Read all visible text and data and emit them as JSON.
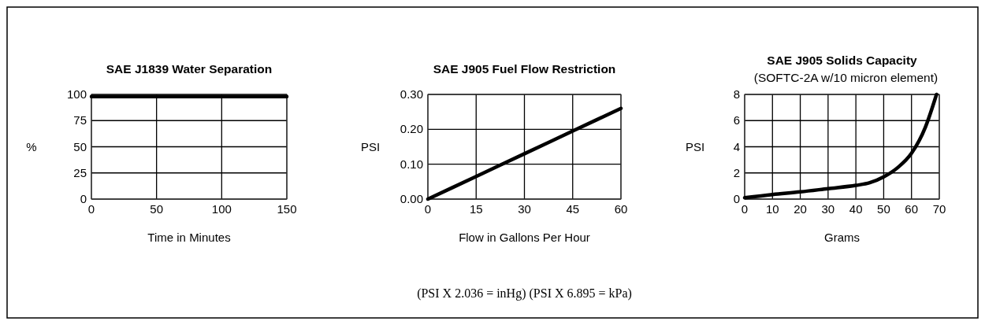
{
  "chart_data": [
    {
      "type": "line",
      "title": "SAE J1839 Water Separation",
      "xlabel": "Time in Minutes",
      "ylabel": "%",
      "x": [
        0,
        150
      ],
      "series": [
        {
          "color": "#000000",
          "values": [
            98,
            98
          ]
        }
      ],
      "xlim": [
        0,
        150
      ],
      "xticks": [
        0,
        50,
        100,
        150
      ],
      "ylim": [
        0,
        100
      ],
      "yticks": [
        0,
        25,
        50,
        75,
        100
      ],
      "grid": true
    },
    {
      "type": "line",
      "title": "SAE J905 Fuel Flow Restriction",
      "xlabel": "Flow in Gallons Per Hour",
      "ylabel": "PSI",
      "x": [
        0,
        15,
        30,
        45,
        60
      ],
      "series": [
        {
          "color": "#000000",
          "values": [
            0,
            0.065,
            0.13,
            0.195,
            0.26
          ]
        }
      ],
      "xlim": [
        0,
        60
      ],
      "xticks": [
        0,
        15,
        30,
        45,
        60
      ],
      "ylim": [
        0,
        0.3
      ],
      "yticks": [
        {
          "value": 0,
          "label": "0.00"
        },
        {
          "value": 0.1,
          "label": "0.10"
        },
        {
          "value": 0.2,
          "label": "0.20"
        },
        {
          "value": 0.3,
          "label": "0.30"
        }
      ],
      "grid": true,
      "annotations": [
        "(PSI X 2.036 = inHg) (PSI X 6.895 = kPa)"
      ]
    },
    {
      "type": "line",
      "title": "SAE J905 Solids Capacity",
      "subtitle": "(SOFTC-2A w/10 micron element)",
      "xlabel": "Grams",
      "ylabel": "PSI",
      "x": [
        0,
        10,
        20,
        30,
        40,
        45,
        50,
        55,
        60,
        65,
        69
      ],
      "series": [
        {
          "color": "#000000",
          "values": [
            0.1,
            0.35,
            0.55,
            0.8,
            1.05,
            1.25,
            1.7,
            2.4,
            3.5,
            5.5,
            8
          ]
        }
      ],
      "xlim": [
        0,
        70
      ],
      "xticks": [
        0,
        10,
        20,
        30,
        40,
        50,
        60,
        70
      ],
      "ylim": [
        0,
        8
      ],
      "yticks": [
        0,
        2,
        4,
        6,
        8
      ],
      "grid": true
    }
  ]
}
